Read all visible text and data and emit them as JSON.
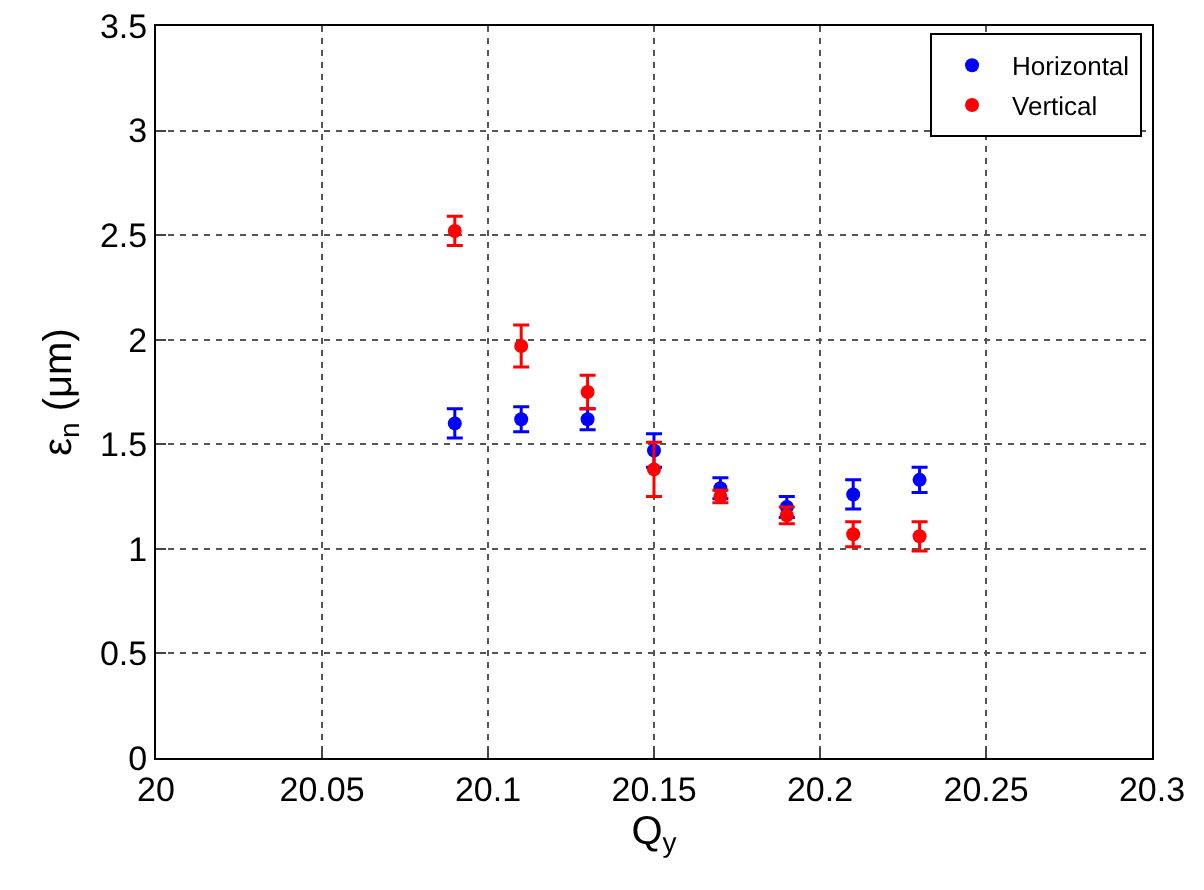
{
  "chart_data": {
    "type": "scatter",
    "xlabel": "Q$_{y}$",
    "ylabel": "ε$_{n}$ (μm)",
    "x": [
      20.09,
      20.11,
      20.13,
      20.15,
      20.17,
      20.19,
      20.21,
      20.23
    ],
    "series": [
      {
        "name": "Horizontal",
        "color": "#0000ff",
        "values": [
          1.6,
          1.62,
          1.62,
          1.47,
          1.29,
          1.2,
          1.26,
          1.33
        ],
        "errors": [
          0.07,
          0.06,
          0.05,
          0.08,
          0.05,
          0.05,
          0.07,
          0.06
        ]
      },
      {
        "name": "Vertical",
        "color": "#ff0000",
        "values": [
          2.52,
          1.97,
          1.75,
          1.38,
          1.25,
          1.16,
          1.07,
          1.06
        ],
        "errors": [
          0.07,
          0.1,
          0.08,
          0.13,
          0.03,
          0.04,
          0.06,
          0.07
        ]
      }
    ],
    "xlim": [
      20,
      20.3
    ],
    "xticks": [
      20,
      20.05,
      20.1,
      20.15,
      20.2,
      20.25,
      20.3
    ],
    "ylim": [
      0,
      3.5
    ],
    "yticks": [
      0,
      0.5,
      1,
      1.5,
      2,
      2.5,
      3,
      3.5
    ],
    "grid": true,
    "legend": "top right",
    "marker": "circle"
  }
}
